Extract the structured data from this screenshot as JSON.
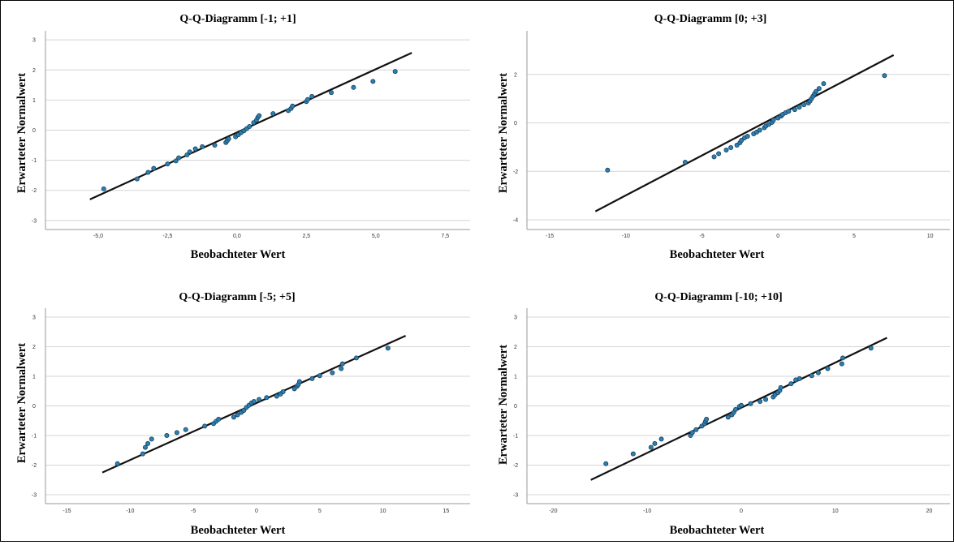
{
  "chart_data": [
    {
      "type": "scatter",
      "title": "Q-Q-Diagramm [-1; +1]",
      "xlabel": "Beobachteter Wert",
      "ylabel": "Erwarteter Normalwert",
      "xlim": [
        -6.9,
        8.4
      ],
      "ylim": [
        -3.3,
        3.3
      ],
      "xticks": [
        -5.0,
        -2.5,
        0.0,
        2.5,
        5.0,
        7.5
      ],
      "xtick_labels": [
        "-5,0",
        "-2,5",
        "0,0",
        "2,5",
        "5,0",
        "7,5"
      ],
      "yticks": [
        -3,
        -2,
        -1,
        0,
        1,
        2,
        3
      ],
      "grid": "horizontal",
      "reference_line": [
        [
          -5.3,
          -2.3
        ],
        [
          6.3,
          2.57
        ]
      ],
      "points": [
        [
          -4.8,
          -1.95
        ],
        [
          -3.6,
          -1.62
        ],
        [
          -3.2,
          -1.4
        ],
        [
          -3.0,
          -1.27
        ],
        [
          -2.5,
          -1.12
        ],
        [
          -2.2,
          -1.02
        ],
        [
          -2.1,
          -0.92
        ],
        [
          -1.8,
          -0.82
        ],
        [
          -1.7,
          -0.72
        ],
        [
          -1.5,
          -0.62
        ],
        [
          -1.25,
          -0.55
        ],
        [
          -0.8,
          -0.5
        ],
        [
          -0.4,
          -0.41
        ],
        [
          -0.35,
          -0.35
        ],
        [
          -0.3,
          -0.29
        ],
        [
          -0.05,
          -0.22
        ],
        [
          0.05,
          -0.15
        ],
        [
          0.15,
          -0.08
        ],
        [
          0.25,
          -0.02
        ],
        [
          0.35,
          0.05
        ],
        [
          0.45,
          0.12
        ],
        [
          0.6,
          0.25
        ],
        [
          0.7,
          0.33
        ],
        [
          0.75,
          0.42
        ],
        [
          0.8,
          0.48
        ],
        [
          1.3,
          0.55
        ],
        [
          1.85,
          0.65
        ],
        [
          1.95,
          0.72
        ],
        [
          2.0,
          0.8
        ],
        [
          2.5,
          0.95
        ],
        [
          2.55,
          1.02
        ],
        [
          2.7,
          1.12
        ],
        [
          3.4,
          1.25
        ],
        [
          4.2,
          1.42
        ],
        [
          4.9,
          1.62
        ],
        [
          5.7,
          1.95
        ]
      ]
    },
    {
      "type": "scatter",
      "title": "Q-Q-Diagramm [0; +3]",
      "xlabel": "Beobachteter Wert",
      "ylabel": "Erwarteter Normalwert",
      "xlim": [
        -16.5,
        11.3
      ],
      "ylim": [
        -4.4,
        3.8
      ],
      "xticks": [
        -15,
        -10,
        -5,
        0,
        5,
        10
      ],
      "xtick_labels": [
        "-15",
        "-10",
        "-5",
        "0",
        "5",
        "10"
      ],
      "yticks": [
        -4,
        -2,
        0,
        2
      ],
      "grid": "horizontal",
      "reference_line": [
        [
          -12,
          -3.65
        ],
        [
          7.6,
          2.8
        ]
      ],
      "points": [
        [
          -11.2,
          -1.95
        ],
        [
          -6.1,
          -1.62
        ],
        [
          -4.2,
          -1.4
        ],
        [
          -3.9,
          -1.27
        ],
        [
          -3.4,
          -1.12
        ],
        [
          -3.1,
          -1.02
        ],
        [
          -2.7,
          -0.92
        ],
        [
          -2.5,
          -0.82
        ],
        [
          -2.4,
          -0.72
        ],
        [
          -2.2,
          -0.62
        ],
        [
          -2.0,
          -0.55
        ],
        [
          -1.6,
          -0.45
        ],
        [
          -1.4,
          -0.38
        ],
        [
          -1.2,
          -0.3
        ],
        [
          -0.9,
          -0.2
        ],
        [
          -0.8,
          -0.13
        ],
        [
          -0.6,
          -0.06
        ],
        [
          -0.4,
          0.02
        ],
        [
          -0.3,
          0.12
        ],
        [
          0.0,
          0.2
        ],
        [
          0.2,
          0.28
        ],
        [
          0.3,
          0.35
        ],
        [
          0.5,
          0.42
        ],
        [
          0.7,
          0.48
        ],
        [
          1.1,
          0.55
        ],
        [
          1.4,
          0.65
        ],
        [
          1.7,
          0.75
        ],
        [
          2.0,
          0.82
        ],
        [
          2.1,
          0.9
        ],
        [
          2.2,
          1.0
        ],
        [
          2.3,
          1.1
        ],
        [
          2.4,
          1.2
        ],
        [
          2.5,
          1.3
        ],
        [
          2.7,
          1.42
        ],
        [
          3.0,
          1.62
        ],
        [
          7.0,
          1.95
        ]
      ]
    },
    {
      "type": "scatter",
      "title": "Q-Q-Diagramm [-5; +5]",
      "xlabel": "Beobachteter Wert",
      "ylabel": "Erwarteter Normalwert",
      "xlim": [
        -16.7,
        16.9
      ],
      "ylim": [
        -3.3,
        3.3
      ],
      "xticks": [
        -15,
        -10,
        -5,
        0,
        5,
        10,
        15
      ],
      "xtick_labels": [
        "-15",
        "-10",
        "-5",
        "0",
        "5",
        "10",
        "15"
      ],
      "yticks": [
        -3,
        -2,
        -1,
        0,
        1,
        2,
        3
      ],
      "grid": "horizontal",
      "reference_line": [
        [
          -12.2,
          -2.25
        ],
        [
          11.8,
          2.37
        ]
      ],
      "points": [
        [
          -11.0,
          -1.95
        ],
        [
          -9.0,
          -1.62
        ],
        [
          -8.8,
          -1.4
        ],
        [
          -8.6,
          -1.27
        ],
        [
          -8.3,
          -1.12
        ],
        [
          -7.1,
          -1.0
        ],
        [
          -6.3,
          -0.9
        ],
        [
          -5.6,
          -0.8
        ],
        [
          -4.1,
          -0.68
        ],
        [
          -3.4,
          -0.6
        ],
        [
          -3.2,
          -0.52
        ],
        [
          -3.0,
          -0.45
        ],
        [
          -1.8,
          -0.38
        ],
        [
          -1.5,
          -0.3
        ],
        [
          -1.2,
          -0.22
        ],
        [
          -1.0,
          -0.15
        ],
        [
          -0.8,
          -0.05
        ],
        [
          -0.6,
          0.02
        ],
        [
          -0.4,
          0.1
        ],
        [
          -0.2,
          0.15
        ],
        [
          0.2,
          0.22
        ],
        [
          0.8,
          0.28
        ],
        [
          1.6,
          0.33
        ],
        [
          1.9,
          0.4
        ],
        [
          2.1,
          0.48
        ],
        [
          3.0,
          0.58
        ],
        [
          3.2,
          0.66
        ],
        [
          3.3,
          0.72
        ],
        [
          3.4,
          0.82
        ],
        [
          4.4,
          0.92
        ],
        [
          5.0,
          1.02
        ],
        [
          6.0,
          1.12
        ],
        [
          6.7,
          1.26
        ],
        [
          6.8,
          1.42
        ],
        [
          7.9,
          1.62
        ],
        [
          10.4,
          1.95
        ]
      ]
    },
    {
      "type": "scatter",
      "title": "Q-Q-Diagramm [-10; +10]",
      "xlabel": "Beobachteter Wert",
      "ylabel": "Erwarteter Normalwert",
      "xlim": [
        -22.8,
        22.2
      ],
      "ylim": [
        -3.3,
        3.3
      ],
      "xticks": [
        -20,
        -10,
        0,
        10,
        20
      ],
      "xtick_labels": [
        "-20",
        "-10",
        "0",
        "10",
        "20"
      ],
      "yticks": [
        -3,
        -2,
        -1,
        0,
        1,
        2,
        3
      ],
      "grid": "horizontal",
      "reference_line": [
        [
          -16,
          -2.5
        ],
        [
          15.5,
          2.3
        ]
      ],
      "points": [
        [
          -14.4,
          -1.95
        ],
        [
          -11.5,
          -1.62
        ],
        [
          -9.6,
          -1.4
        ],
        [
          -9.2,
          -1.27
        ],
        [
          -8.5,
          -1.12
        ],
        [
          -5.4,
          -1.0
        ],
        [
          -5.2,
          -0.9
        ],
        [
          -4.8,
          -0.8
        ],
        [
          -4.2,
          -0.68
        ],
        [
          -3.9,
          -0.6
        ],
        [
          -3.8,
          -0.52
        ],
        [
          -3.7,
          -0.45
        ],
        [
          -1.4,
          -0.38
        ],
        [
          -1.0,
          -0.3
        ],
        [
          -0.8,
          -0.22
        ],
        [
          -0.6,
          -0.12
        ],
        [
          -0.2,
          -0.02
        ],
        [
          0.0,
          0.02
        ],
        [
          1.0,
          0.08
        ],
        [
          2.0,
          0.15
        ],
        [
          2.6,
          0.22
        ],
        [
          3.4,
          0.3
        ],
        [
          3.6,
          0.38
        ],
        [
          3.9,
          0.45
        ],
        [
          4.1,
          0.52
        ],
        [
          4.2,
          0.62
        ],
        [
          5.3,
          0.75
        ],
        [
          5.8,
          0.88
        ],
        [
          6.2,
          0.92
        ],
        [
          7.5,
          1.02
        ],
        [
          8.2,
          1.12
        ],
        [
          9.2,
          1.26
        ],
        [
          10.7,
          1.42
        ],
        [
          10.8,
          1.62
        ],
        [
          13.8,
          1.95
        ]
      ]
    }
  ]
}
